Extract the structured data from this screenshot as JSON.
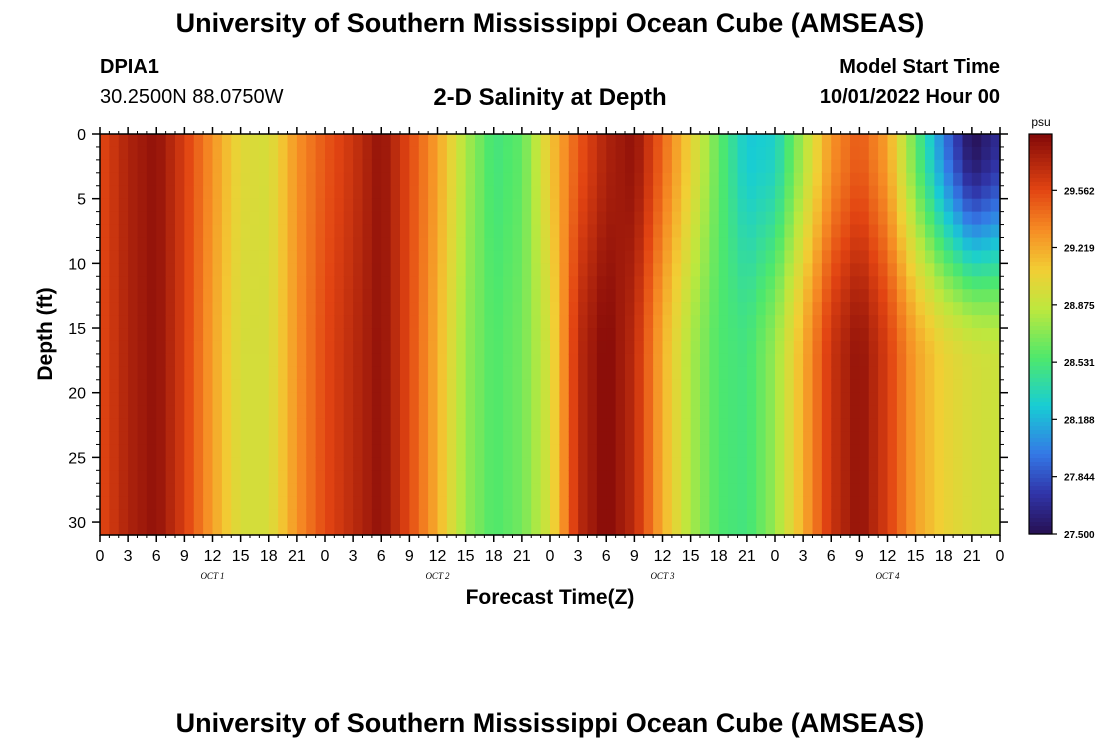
{
  "header": {
    "title": "University of Southern Mississippi Ocean Cube (AMSEAS)",
    "station_id": "DPIA1",
    "station_coords": "30.2500N  88.0750W",
    "chart_heading": "2-D Salinity at Depth",
    "model_start_label": "Model Start Time",
    "model_start_value": "10/01/2022 Hour 00"
  },
  "footer": {
    "title": "University of Southern Mississippi Ocean Cube (AMSEAS)"
  },
  "chart_data": {
    "type": "heatmap",
    "title": "2-D Salinity at Depth",
    "xlabel": "Forecast Time(Z)",
    "ylabel": "Depth (ft)",
    "x_range_hours": [
      0,
      96
    ],
    "x_tick_labels": [
      "0",
      "3",
      "6",
      "9",
      "12",
      "15",
      "18",
      "21",
      "0",
      "3",
      "6",
      "9",
      "12",
      "15",
      "18",
      "21",
      "0",
      "3",
      "6",
      "9",
      "12",
      "15",
      "18",
      "21",
      "0",
      "3",
      "6",
      "9",
      "12",
      "15",
      "18",
      "21",
      "0"
    ],
    "x_day_labels": [
      "OCT 1",
      "OCT 2",
      "OCT 3",
      "OCT 4"
    ],
    "y_range": [
      0,
      31
    ],
    "y_ticks": [
      0,
      5,
      10,
      15,
      20,
      25,
      30
    ],
    "y_reversed": true,
    "colorbar": {
      "unit": "psu",
      "min": 27.5,
      "max": 29.9,
      "tick_labels": [
        "29.562",
        "29.219",
        "28.875",
        "28.531",
        "28.188",
        "27.844",
        "27.500"
      ]
    },
    "surface_profile_psu": [
      [
        0,
        29.55
      ],
      [
        3,
        29.75
      ],
      [
        6,
        29.85
      ],
      [
        9,
        29.6
      ],
      [
        12,
        29.3
      ],
      [
        15,
        29.0
      ],
      [
        18,
        28.95
      ],
      [
        21,
        29.3
      ],
      [
        24,
        29.5
      ],
      [
        27,
        29.65
      ],
      [
        30,
        29.85
      ],
      [
        33,
        29.55
      ],
      [
        36,
        29.25
      ],
      [
        39,
        28.8
      ],
      [
        42,
        28.5
      ],
      [
        45,
        28.6
      ],
      [
        48,
        29.1
      ],
      [
        51,
        29.5
      ],
      [
        54,
        29.75
      ],
      [
        57,
        29.85
      ],
      [
        60,
        29.45
      ],
      [
        63,
        29.05
      ],
      [
        66,
        28.6
      ],
      [
        69,
        28.25
      ],
      [
        72,
        28.3
      ],
      [
        75,
        28.8
      ],
      [
        78,
        29.3
      ],
      [
        81,
        29.5
      ],
      [
        84,
        29.25
      ],
      [
        87,
        28.6
      ],
      [
        90,
        28.0
      ],
      [
        93,
        27.5
      ],
      [
        96,
        27.7
      ]
    ],
    "bottom_profile_psu": [
      [
        0,
        29.55
      ],
      [
        3,
        29.75
      ],
      [
        6,
        29.85
      ],
      [
        9,
        29.6
      ],
      [
        12,
        29.25
      ],
      [
        15,
        28.95
      ],
      [
        18,
        28.95
      ],
      [
        21,
        29.3
      ],
      [
        24,
        29.55
      ],
      [
        27,
        29.7
      ],
      [
        30,
        29.85
      ],
      [
        33,
        29.55
      ],
      [
        36,
        29.2
      ],
      [
        39,
        28.75
      ],
      [
        42,
        28.55
      ],
      [
        45,
        28.65
      ],
      [
        48,
        28.95
      ],
      [
        51,
        29.7
      ],
      [
        54,
        29.9
      ],
      [
        57,
        29.7
      ],
      [
        60,
        29.2
      ],
      [
        63,
        28.8
      ],
      [
        66,
        28.55
      ],
      [
        69,
        28.5
      ],
      [
        72,
        28.75
      ],
      [
        75,
        29.2
      ],
      [
        78,
        29.65
      ],
      [
        81,
        29.85
      ],
      [
        84,
        29.6
      ],
      [
        87,
        29.25
      ],
      [
        90,
        29.05
      ],
      [
        93,
        28.95
      ],
      [
        96,
        28.9
      ]
    ]
  }
}
